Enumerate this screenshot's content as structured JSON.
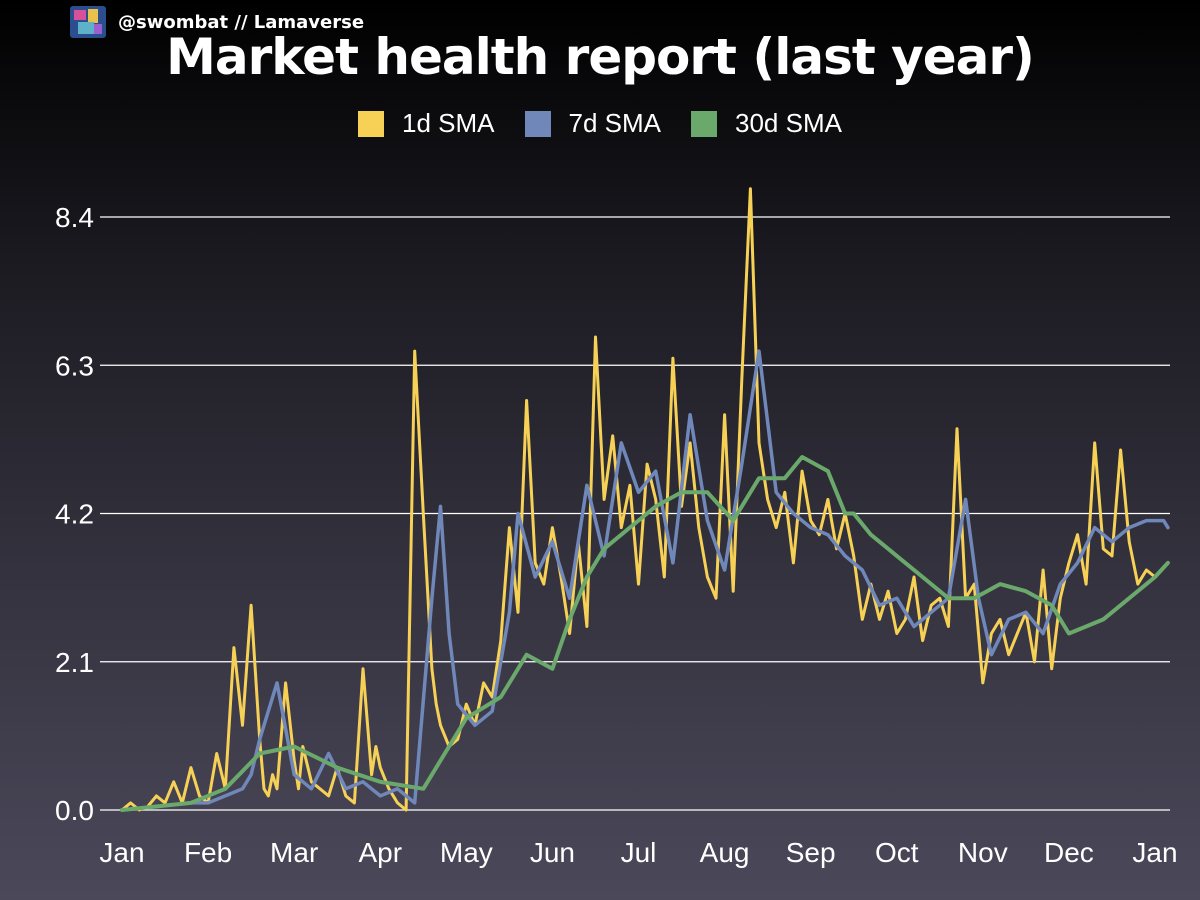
{
  "header": {
    "brand": "@swombat // Lamaverse",
    "title": "Market health report (last year)"
  },
  "colors": {
    "s1": "#f6d155",
    "s7": "#6f87b9",
    "s30": "#6aa96b",
    "grid": "#ffffff"
  },
  "chart_data": {
    "type": "line",
    "title": "Market health report (last year)",
    "xlabel": "",
    "ylabel": "",
    "ylim": [
      0,
      8.4
    ],
    "yticks": [
      "0.0",
      "2.1",
      "4.2",
      "6.3",
      "8.4"
    ],
    "ytick_values": [
      0,
      2.1,
      4.2,
      6.3,
      8.4
    ],
    "xticks": [
      "Jan",
      "Feb",
      "Mar",
      "Apr",
      "May",
      "Jun",
      "Jul",
      "Aug",
      "Sep",
      "Oct",
      "Nov",
      "Dec",
      "Jan"
    ],
    "legend_position": "top-center",
    "series": [
      {
        "name": "1d SMA",
        "x": [
          0,
          0.1,
          0.2,
          0.3,
          0.4,
          0.5,
          0.6,
          0.7,
          0.8,
          0.9,
          1.0,
          1.1,
          1.2,
          1.3,
          1.4,
          1.5,
          1.6,
          1.65,
          1.7,
          1.75,
          1.8,
          1.9,
          2.0,
          2.05,
          2.1,
          2.2,
          2.3,
          2.4,
          2.5,
          2.6,
          2.7,
          2.8,
          2.9,
          2.95,
          3.0,
          3.1,
          3.2,
          3.3,
          3.4,
          3.5,
          3.6,
          3.65,
          3.7,
          3.8,
          3.9,
          4.0,
          4.1,
          4.2,
          4.3,
          4.4,
          4.5,
          4.6,
          4.7,
          4.8,
          4.9,
          5.0,
          5.1,
          5.2,
          5.3,
          5.4,
          5.5,
          5.6,
          5.7,
          5.8,
          5.9,
          6.0,
          6.1,
          6.2,
          6.3,
          6.4,
          6.5,
          6.6,
          6.7,
          6.8,
          6.9,
          7.0,
          7.1,
          7.2,
          7.3,
          7.4,
          7.5,
          7.6,
          7.7,
          7.8,
          7.9,
          8.0,
          8.1,
          8.2,
          8.3,
          8.4,
          8.5,
          8.6,
          8.7,
          8.8,
          8.9,
          9.0,
          9.1,
          9.2,
          9.3,
          9.4,
          9.5,
          9.6,
          9.7,
          9.8,
          9.9,
          10.0,
          10.1,
          10.2,
          10.3,
          10.4,
          10.5,
          10.6,
          10.7,
          10.8,
          10.9,
          11.0,
          11.1,
          11.2,
          11.3,
          11.4,
          11.5,
          11.6,
          11.7,
          11.8,
          11.9,
          12.0,
          12.15
        ],
        "values": [
          0.0,
          0.1,
          0.0,
          0.05,
          0.2,
          0.1,
          0.4,
          0.1,
          0.6,
          0.2,
          0.1,
          0.8,
          0.3,
          2.3,
          1.2,
          2.9,
          1.0,
          0.3,
          0.2,
          0.5,
          0.3,
          1.8,
          0.7,
          0.3,
          0.9,
          0.4,
          0.3,
          0.2,
          0.6,
          0.2,
          0.1,
          2.0,
          0.5,
          0.9,
          0.6,
          0.3,
          0.1,
          0.0,
          6.5,
          4.2,
          2.0,
          1.5,
          1.2,
          0.9,
          1.0,
          1.5,
          1.2,
          1.8,
          1.6,
          2.4,
          4.0,
          2.8,
          5.8,
          3.5,
          3.2,
          4.0,
          3.3,
          2.5,
          3.8,
          2.6,
          6.7,
          4.4,
          5.3,
          4.0,
          4.6,
          3.2,
          4.9,
          4.4,
          3.3,
          6.4,
          4.3,
          5.2,
          4.0,
          3.3,
          3.0,
          5.6,
          3.1,
          6.1,
          8.8,
          5.2,
          4.4,
          4.0,
          4.5,
          3.5,
          4.8,
          4.1,
          3.9,
          4.4,
          3.7,
          4.2,
          3.6,
          2.7,
          3.2,
          2.7,
          3.1,
          2.5,
          2.7,
          3.3,
          2.4,
          2.9,
          3.0,
          2.6,
          5.4,
          3.0,
          3.2,
          1.8,
          2.5,
          2.7,
          2.2,
          2.5,
          2.8,
          2.1,
          3.4,
          2.0,
          3.0,
          3.5,
          3.9,
          3.2,
          5.2,
          3.7,
          3.6,
          5.1,
          3.8,
          3.2,
          3.4,
          3.3,
          3.5
        ]
      },
      {
        "name": "7d SMA",
        "x": [
          0,
          0.4,
          0.8,
          1.0,
          1.2,
          1.4,
          1.5,
          1.6,
          1.8,
          2.0,
          2.2,
          2.4,
          2.6,
          2.8,
          3.0,
          3.2,
          3.4,
          3.6,
          3.7,
          3.8,
          3.9,
          4.1,
          4.3,
          4.5,
          4.6,
          4.8,
          5.0,
          5.2,
          5.4,
          5.6,
          5.8,
          6.0,
          6.2,
          6.4,
          6.6,
          6.8,
          7.0,
          7.2,
          7.4,
          7.6,
          7.8,
          8.0,
          8.2,
          8.4,
          8.6,
          8.8,
          9.0,
          9.2,
          9.4,
          9.6,
          9.8,
          9.95,
          10.1,
          10.3,
          10.5,
          10.7,
          10.9,
          11.1,
          11.3,
          11.5,
          11.7,
          11.9,
          12.1,
          12.15
        ],
        "values": [
          0.0,
          0.05,
          0.1,
          0.1,
          0.2,
          0.3,
          0.5,
          1.0,
          1.8,
          0.5,
          0.3,
          0.8,
          0.3,
          0.4,
          0.2,
          0.3,
          0.1,
          3.0,
          4.3,
          2.5,
          1.5,
          1.2,
          1.4,
          2.8,
          4.2,
          3.3,
          3.8,
          3.0,
          4.6,
          3.6,
          5.2,
          4.5,
          4.8,
          3.5,
          5.6,
          4.1,
          3.4,
          4.9,
          6.5,
          4.5,
          4.2,
          4.0,
          3.9,
          3.6,
          3.4,
          2.9,
          3.0,
          2.6,
          2.8,
          3.0,
          4.4,
          3.0,
          2.2,
          2.7,
          2.8,
          2.5,
          3.2,
          3.5,
          4.0,
          3.8,
          4.0,
          4.1,
          4.1,
          4.0
        ]
      },
      {
        "name": "30d SMA",
        "x": [
          0,
          0.8,
          1.2,
          1.6,
          2.0,
          2.5,
          3.0,
          3.5,
          4.0,
          4.4,
          4.7,
          5.0,
          5.2,
          5.4,
          5.6,
          5.9,
          6.2,
          6.5,
          6.8,
          7.1,
          7.4,
          7.7,
          7.9,
          8.2,
          8.4,
          8.5,
          8.7,
          9.0,
          9.3,
          9.6,
          9.9,
          10.2,
          10.5,
          10.8,
          11.0,
          11.2,
          11.4,
          11.7,
          12.0,
          12.15
        ],
        "values": [
          0.0,
          0.1,
          0.3,
          0.8,
          0.9,
          0.6,
          0.4,
          0.3,
          1.3,
          1.6,
          2.2,
          2.0,
          2.7,
          3.3,
          3.7,
          4.0,
          4.3,
          4.5,
          4.5,
          4.1,
          4.7,
          4.7,
          5.0,
          4.8,
          4.2,
          4.2,
          3.9,
          3.6,
          3.3,
          3.0,
          3.0,
          3.2,
          3.1,
          2.9,
          2.5,
          2.6,
          2.7,
          3.0,
          3.3,
          3.5
        ]
      }
    ]
  }
}
